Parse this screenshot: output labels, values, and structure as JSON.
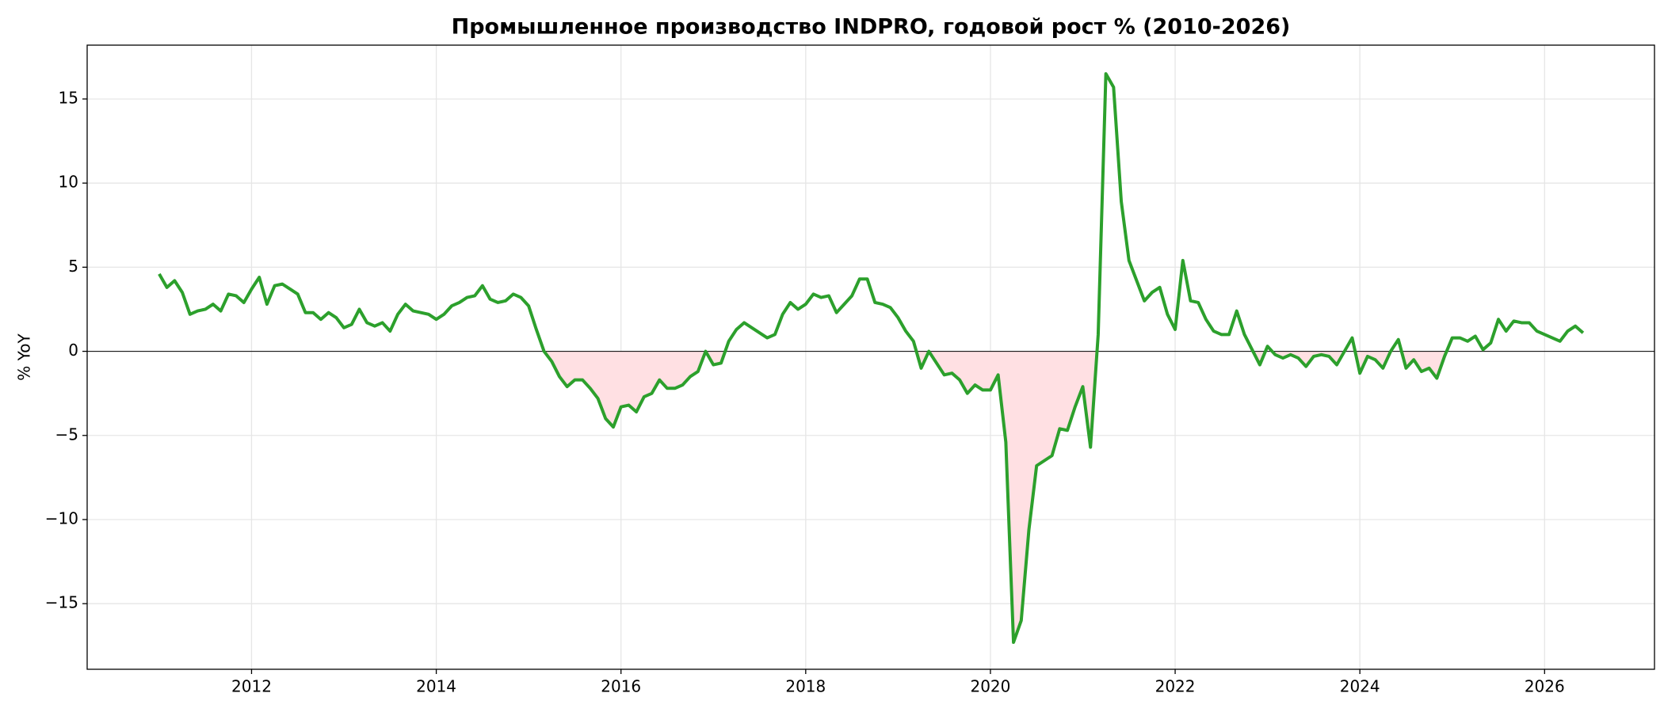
{
  "chart_data": {
    "type": "line",
    "title": "Промышленное производство INDPRO, годовой рост % (2010-2026)",
    "ylabel": "% YoY",
    "x": [
      "2011-01",
      "2011-02",
      "2011-03",
      "2011-04",
      "2011-05",
      "2011-06",
      "2011-07",
      "2011-08",
      "2011-09",
      "2011-10",
      "2011-11",
      "2011-12",
      "2012-01",
      "2012-02",
      "2012-03",
      "2012-04",
      "2012-05",
      "2012-06",
      "2012-07",
      "2012-08",
      "2012-09",
      "2012-10",
      "2012-11",
      "2012-12",
      "2013-01",
      "2013-02",
      "2013-03",
      "2013-04",
      "2013-05",
      "2013-06",
      "2013-07",
      "2013-08",
      "2013-09",
      "2013-10",
      "2013-11",
      "2013-12",
      "2014-01",
      "2014-02",
      "2014-03",
      "2014-04",
      "2014-05",
      "2014-06",
      "2014-07",
      "2014-08",
      "2014-09",
      "2014-10",
      "2014-11",
      "2014-12",
      "2015-01",
      "2015-02",
      "2015-03",
      "2015-04",
      "2015-05",
      "2015-06",
      "2015-07",
      "2015-08",
      "2015-09",
      "2015-10",
      "2015-11",
      "2015-12",
      "2016-01",
      "2016-02",
      "2016-03",
      "2016-04",
      "2016-05",
      "2016-06",
      "2016-07",
      "2016-08",
      "2016-09",
      "2016-10",
      "2016-11",
      "2016-12",
      "2017-01",
      "2017-02",
      "2017-03",
      "2017-04",
      "2017-05",
      "2017-06",
      "2017-07",
      "2017-08",
      "2017-09",
      "2017-10",
      "2017-11",
      "2017-12",
      "2018-01",
      "2018-02",
      "2018-03",
      "2018-04",
      "2018-05",
      "2018-06",
      "2018-07",
      "2018-08",
      "2018-09",
      "2018-10",
      "2018-11",
      "2018-12",
      "2019-01",
      "2019-02",
      "2019-03",
      "2019-04",
      "2019-05",
      "2019-06",
      "2019-07",
      "2019-08",
      "2019-09",
      "2019-10",
      "2019-11",
      "2019-12",
      "2020-01",
      "2020-02",
      "2020-03",
      "2020-04",
      "2020-05",
      "2020-06",
      "2020-07",
      "2020-08",
      "2020-09",
      "2020-10",
      "2020-11",
      "2020-12",
      "2021-01",
      "2021-02",
      "2021-03",
      "2021-04",
      "2021-05",
      "2021-06",
      "2021-07",
      "2021-08",
      "2021-09",
      "2021-10",
      "2021-11",
      "2021-12",
      "2022-01",
      "2022-02",
      "2022-03",
      "2022-04",
      "2022-05",
      "2022-06",
      "2022-07",
      "2022-08",
      "2022-09",
      "2022-10",
      "2022-11",
      "2022-12",
      "2023-01",
      "2023-02",
      "2023-03",
      "2023-04",
      "2023-05",
      "2023-06",
      "2023-07",
      "2023-08",
      "2023-09",
      "2023-10",
      "2023-11",
      "2023-12",
      "2024-01",
      "2024-02",
      "2024-03",
      "2024-04",
      "2024-05",
      "2024-06",
      "2024-07",
      "2024-08",
      "2024-09",
      "2024-10",
      "2024-11",
      "2024-12",
      "2025-01",
      "2025-02",
      "2025-03",
      "2025-04",
      "2025-05",
      "2025-06",
      "2025-07",
      "2025-08",
      "2025-09",
      "2025-10",
      "2025-11",
      "2025-12",
      "2026-01",
      "2026-02",
      "2026-03",
      "2026-04",
      "2026-05",
      "2026-06"
    ],
    "series": [
      {
        "color": "#2ca02c",
        "negative_fill": "#ffe0e3",
        "values": [
          4.6,
          3.8,
          4.2,
          3.5,
          2.2,
          2.4,
          2.5,
          2.8,
          2.4,
          3.4,
          3.3,
          2.9,
          3.7,
          4.4,
          2.8,
          3.9,
          4.0,
          3.7,
          3.4,
          2.3,
          2.3,
          1.9,
          2.3,
          2.0,
          1.4,
          1.6,
          2.5,
          1.7,
          1.5,
          1.7,
          1.2,
          2.2,
          2.8,
          2.4,
          2.3,
          2.2,
          1.9,
          2.2,
          2.7,
          2.9,
          3.2,
          3.3,
          3.9,
          3.1,
          2.9,
          3.0,
          3.4,
          3.2,
          2.7,
          1.3,
          0.0,
          -0.6,
          -1.5,
          -2.1,
          -1.7,
          -1.7,
          -2.2,
          -2.8,
          -4.0,
          -4.5,
          -3.3,
          -3.2,
          -3.6,
          -2.7,
          -2.5,
          -1.7,
          -2.2,
          -2.2,
          -2.0,
          -1.5,
          -1.2,
          0.0,
          -0.8,
          -0.7,
          0.6,
          1.3,
          1.7,
          1.4,
          1.1,
          0.8,
          1.0,
          2.2,
          2.9,
          2.5,
          2.8,
          3.4,
          3.2,
          3.3,
          2.3,
          2.8,
          3.3,
          4.3,
          4.3,
          2.9,
          2.8,
          2.6,
          2.0,
          1.2,
          0.6,
          -1.0,
          0.0,
          -0.7,
          -1.4,
          -1.3,
          -1.7,
          -2.5,
          -2.0,
          -2.3,
          -2.3,
          -1.4,
          -5.4,
          -17.3,
          -16.0,
          -10.6,
          -6.8,
          -6.5,
          -6.2,
          -4.6,
          -4.7,
          -3.3,
          -2.1,
          -5.7,
          1.0,
          16.5,
          15.7,
          8.9,
          5.4,
          4.2,
          3.0,
          3.5,
          3.8,
          2.2,
          1.3,
          5.4,
          3.0,
          2.9,
          1.9,
          1.2,
          1.0,
          1.0,
          2.4,
          1.0,
          0.1,
          -0.8,
          0.3,
          -0.2,
          -0.4,
          -0.2,
          -0.4,
          -0.9,
          -0.3,
          -0.2,
          -0.3,
          -0.8,
          0.0,
          0.8,
          -1.3,
          -0.3,
          -0.5,
          -1.0,
          0.0,
          0.7,
          -1.0,
          -0.5,
          -1.2,
          -1.0,
          -1.6,
          -0.3,
          0.8,
          0.8,
          0.6,
          0.9,
          0.1,
          0.5,
          1.9,
          1.2,
          1.8,
          1.7,
          1.7,
          1.2,
          1.0,
          0.8,
          0.6,
          1.2,
          1.5,
          1.1
        ]
      }
    ],
    "xlim": [
      2010.22,
      2027.19
    ],
    "xticks": [
      2012,
      2014,
      2016,
      2018,
      2020,
      2022,
      2024,
      2026
    ],
    "ylim": [
      -18.9,
      18.2
    ],
    "yticks": [
      {
        "value": -15,
        "label": "−15"
      },
      {
        "value": -10,
        "label": "−10"
      },
      {
        "value": -5,
        "label": "−5"
      },
      0,
      5,
      10,
      15
    ],
    "grid": true
  }
}
